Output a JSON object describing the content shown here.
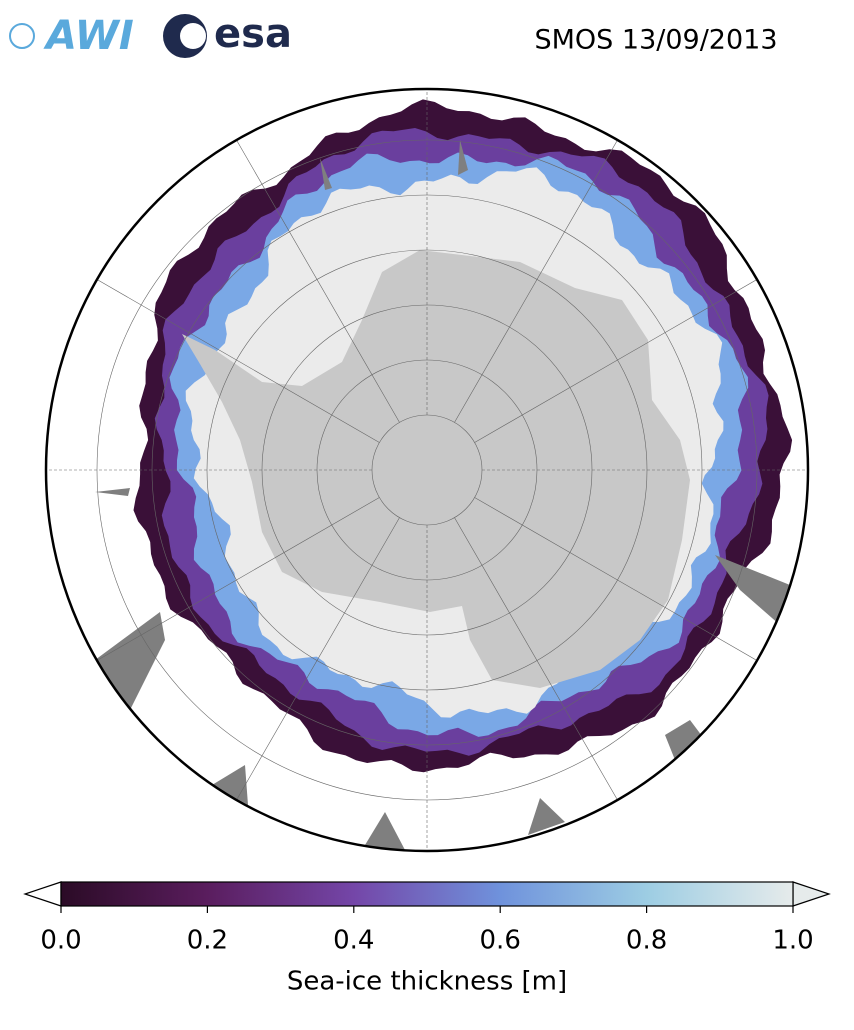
{
  "logos": [
    "AWI",
    "esa"
  ],
  "title": "SMOS 13/09/2013",
  "colorbar": {
    "label": "Sea-ice thickness [m]",
    "lim": [
      0,
      1
    ],
    "ticks": [
      {
        "value": 0,
        "label": "0.0"
      },
      {
        "value": 0.2,
        "label": "0.2"
      },
      {
        "value": 0.4,
        "label": "0.4"
      },
      {
        "value": 0.6,
        "label": "0.6"
      },
      {
        "value": 0.8,
        "label": "0.8"
      },
      {
        "value": 1,
        "label": "1.0"
      }
    ],
    "colors": [
      "#2b0b26",
      "#5a1d5e",
      "#7446a8",
      "#6f92dc",
      "#9dcde3",
      "#e6ebeb"
    ]
  }
}
